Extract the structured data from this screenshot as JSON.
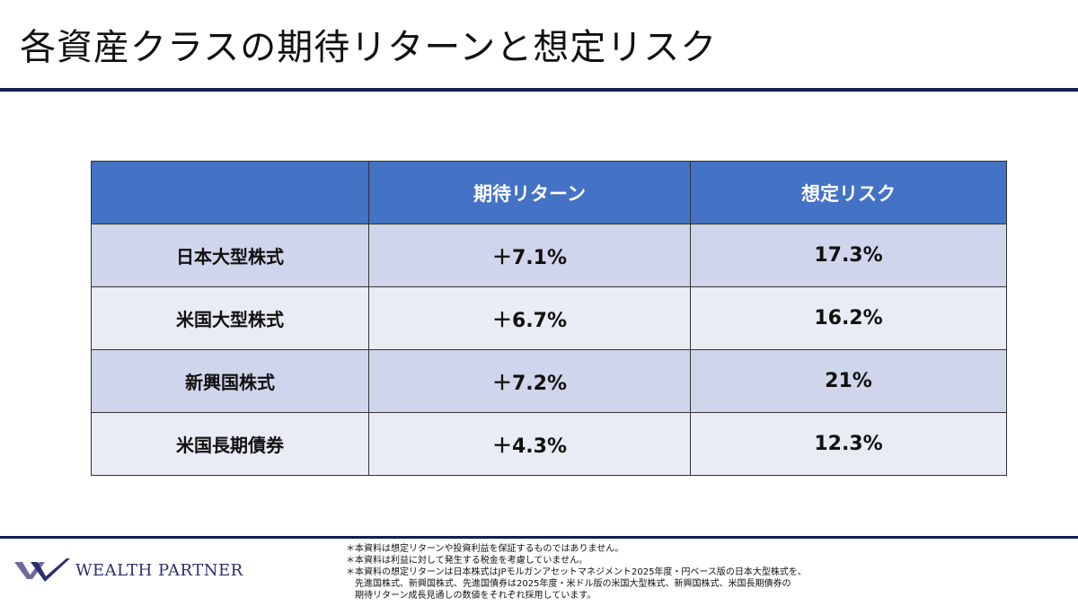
{
  "title": "各資産クラスの期待リターンと想定リスク",
  "table": {
    "headers": [
      "",
      "期待リターン",
      "想定リスク"
    ],
    "rows": [
      {
        "asset": "日本大型株式",
        "return": "＋7.1%",
        "risk": "17.3%"
      },
      {
        "asset": "米国大型株式",
        "return": "＋6.7%",
        "risk": "16.2%"
      },
      {
        "asset": "新興国株式",
        "return": "＋7.2%",
        "risk": "21%"
      },
      {
        "asset": "米国長期債券",
        "return": "＋4.3%",
        "risk": "12.3%"
      }
    ]
  },
  "notes": [
    "＊本資料は想定リターンや投資利益を保証するものではありません。",
    "＊本資料は利益に対して発生する税金を考慮していません。",
    "＊本資料の想定リターンは日本株式はJPモルガンアセットマネジメント2025年度・円ベース版の日本大型株式を、",
    "先進国株式、新興国株式、先進国債券は2025年度・米ドル版の米国大型株式、新興国株式、米国長期債券の",
    "期待リターン成長見通しの数値をそれぞれ採用しています。"
  ],
  "logo": {
    "text": "WEALTH PARTNER"
  },
  "colors": {
    "header": "#4472c4",
    "navy": "#0f1f52",
    "row_odd": "#cfd5ea",
    "row_even": "#e9ebf5"
  }
}
